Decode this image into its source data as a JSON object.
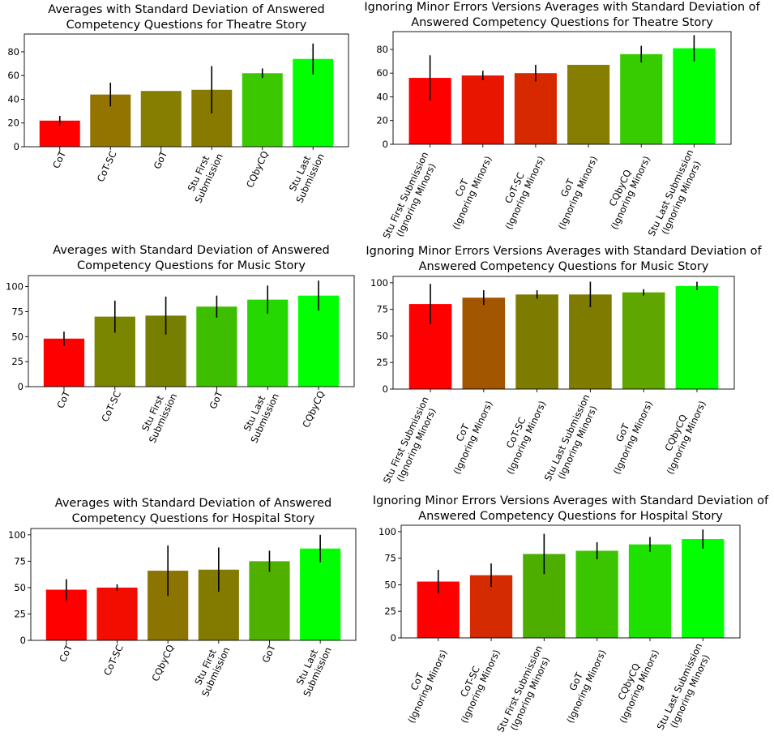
{
  "chart_data": [
    {
      "type": "bar",
      "title": [
        "Averages with Standard Deviation of Answered",
        "Competency Questions for Theatre Story"
      ],
      "categories": [
        [
          "CoT"
        ],
        [
          "CoT-SC"
        ],
        [
          "GoT"
        ],
        [
          "Stu First",
          "Submission"
        ],
        [
          "CQbyCQ"
        ],
        [
          "Stu Last",
          "Submission"
        ]
      ],
      "values": [
        22,
        44,
        47,
        48,
        62,
        74
      ],
      "std": [
        4,
        10,
        0,
        20,
        4,
        13
      ],
      "colors": [
        "#ff0000",
        "#937400",
        "#857e00",
        "#887a00",
        "#3cc800",
        "#00ff00"
      ],
      "ylim": [
        0,
        95
      ],
      "yticks": [
        0,
        20,
        40,
        60,
        80
      ],
      "grid": false,
      "xlabel": "",
      "ylabel": ""
    },
    {
      "type": "bar",
      "title": [
        "Ignoring Minor Errors Versions Averages with Standard Deviation of",
        "Answered Competency Questions for Theatre Story"
      ],
      "categories": [
        [
          "Stu First Submission",
          "(Ignoring Minors)"
        ],
        [
          "CoT",
          "(Ignoring Minors)"
        ],
        [
          "CoT-SC",
          "(Ignoring Minors)"
        ],
        [
          "GoT",
          "(Ignoring Minors)"
        ],
        [
          "CQbyCQ",
          "(Ignoring Minors)"
        ],
        [
          "Stu Last Submission",
          "(Ignoring Minors)"
        ]
      ],
      "values": [
        56,
        58,
        60,
        67,
        76,
        81
      ],
      "std": [
        19,
        4,
        7,
        0,
        7,
        11
      ],
      "colors": [
        "#ff0000",
        "#e81500",
        "#d62900",
        "#857e00",
        "#37cc00",
        "#00ff00"
      ],
      "ylim": [
        0,
        95
      ],
      "yticks": [
        0,
        20,
        40,
        60,
        80
      ],
      "grid": false,
      "xlabel": "",
      "ylabel": ""
    },
    {
      "type": "bar",
      "title": [
        "Averages with Standard Deviation of Answered",
        "Competency Questions for Music Story"
      ],
      "categories": [
        [
          "CoT"
        ],
        [
          "CoT-SC"
        ],
        [
          "Stu First",
          "Submission"
        ],
        [
          "GoT"
        ],
        [
          "Stu Last",
          "Submission"
        ],
        [
          "CQbyCQ"
        ]
      ],
      "values": [
        48,
        70,
        71,
        80,
        87,
        91
      ],
      "std": [
        7,
        16,
        19,
        11,
        14,
        15
      ],
      "colors": [
        "#ff0000",
        "#7a8500",
        "#777f00",
        "#3dbf00",
        "#25d900",
        "#00ff00"
      ],
      "ylim": [
        0,
        111
      ],
      "yticks": [
        0,
        25,
        50,
        75,
        100
      ],
      "grid": false,
      "xlabel": "",
      "ylabel": ""
    },
    {
      "type": "bar",
      "title": [
        "Ignoring Minor Errors Versions Averages with Standard Deviation of",
        "Answered Competency Questions for Music Story"
      ],
      "categories": [
        [
          "Stu First Submission",
          "(Ignoring Minors)"
        ],
        [
          "CoT",
          "(Ignoring Minors)"
        ],
        [
          "CoT-SC",
          "(Ignoring Minors)"
        ],
        [
          "Stu Last Submission",
          "(Ignoring Minors)"
        ],
        [
          "GoT",
          "(Ignoring Minors)"
        ],
        [
          "CQbyCQ",
          "(Ignoring Minors)"
        ]
      ],
      "values": [
        80,
        86,
        89,
        89,
        91,
        97
      ],
      "std": [
        19,
        7,
        4,
        12,
        3,
        4
      ],
      "colors": [
        "#ff0000",
        "#a25600",
        "#7e7c00",
        "#7f7b00",
        "#5fa600",
        "#00ff00"
      ],
      "ylim": [
        0,
        106
      ],
      "yticks": [
        0,
        25,
        50,
        75,
        100
      ],
      "grid": false,
      "xlabel": "",
      "ylabel": ""
    },
    {
      "type": "bar",
      "title": [
        "Averages with Standard Deviation of Answered",
        "Competency Questions for Hospital Story"
      ],
      "categories": [
        [
          "CoT"
        ],
        [
          "CoT-SC"
        ],
        [
          "CQbyCQ"
        ],
        [
          "Stu First",
          "Submission"
        ],
        [
          "GoT"
        ],
        [
          "Stu Last",
          "Submission"
        ]
      ],
      "values": [
        48,
        50,
        66,
        67,
        75,
        87
      ],
      "std": [
        10,
        3,
        24,
        21,
        10,
        13
      ],
      "colors": [
        "#ff0000",
        "#f20d00",
        "#8b7400",
        "#837b00",
        "#4fb000",
        "#00ff00"
      ],
      "ylim": [
        0,
        106
      ],
      "yticks": [
        0,
        25,
        50,
        75,
        100
      ],
      "grid": false,
      "xlabel": "",
      "ylabel": ""
    },
    {
      "type": "bar",
      "title": [
        "Ignoring Minor Errors Versions Averages with Standard Deviation of",
        "Answered Competency Questions for Hospital Story"
      ],
      "categories": [
        [
          "CoT",
          "(Ignoring Minors)"
        ],
        [
          "CoT-SC",
          "(Ignoring Minors)"
        ],
        [
          "Stu First Submission",
          "(Ignoring Minors)"
        ],
        [
          "GoT",
          "(Ignoring Minors)"
        ],
        [
          "CQbyCQ",
          "(Ignoring Minors)"
        ],
        [
          "Stu Last Submission",
          "(Ignoring Minors)"
        ]
      ],
      "values": [
        53,
        59,
        79,
        82,
        88,
        93
      ],
      "std": [
        11,
        11,
        19,
        8,
        7,
        9
      ],
      "colors": [
        "#ff0000",
        "#d42b00",
        "#4eae00",
        "#3ac500",
        "#1ee100",
        "#00ff00"
      ],
      "ylim": [
        0,
        106
      ],
      "yticks": [
        0,
        25,
        50,
        75,
        100
      ],
      "grid": false,
      "xlabel": "",
      "ylabel": ""
    }
  ]
}
